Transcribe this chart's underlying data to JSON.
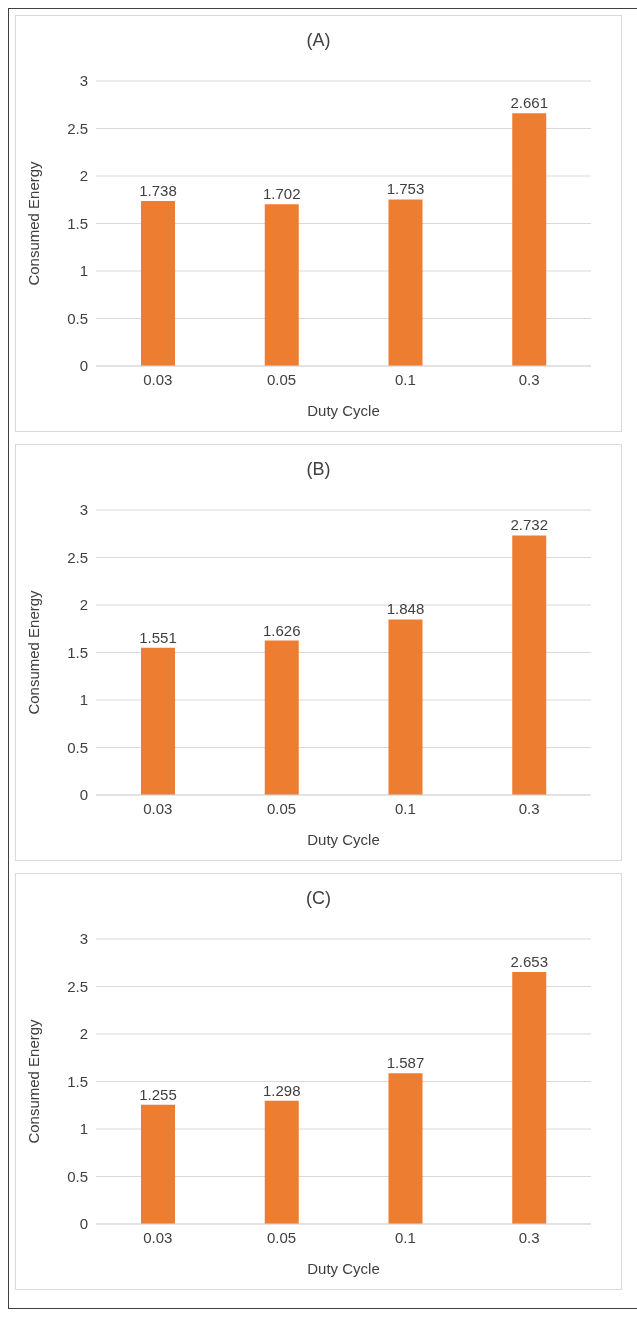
{
  "chart_data": [
    {
      "type": "bar",
      "title": "(A)",
      "xlabel": "Duty Cycle",
      "ylabel": "Consumed Energy",
      "categories": [
        "0.03",
        "0.05",
        "0.1",
        "0.3"
      ],
      "values": [
        1.738,
        1.702,
        1.753,
        2.661
      ],
      "color": "#ed7d31",
      "ylim": [
        0,
        3
      ],
      "yticks": [
        0,
        0.5,
        1,
        1.5,
        2,
        2.5,
        3
      ],
      "grid": "y",
      "data_labels": true
    },
    {
      "type": "bar",
      "title": "(B)",
      "xlabel": "Duty Cycle",
      "ylabel": "Consumed Energy",
      "categories": [
        "0.03",
        "0.05",
        "0.1",
        "0.3"
      ],
      "values": [
        1.551,
        1.626,
        1.848,
        2.732
      ],
      "color": "#ed7d31",
      "ylim": [
        0,
        3
      ],
      "yticks": [
        0,
        0.5,
        1,
        1.5,
        2,
        2.5,
        3
      ],
      "grid": "y",
      "data_labels": true
    },
    {
      "type": "bar",
      "title": "(C)",
      "xlabel": "Duty Cycle",
      "ylabel": "Consumed Energy",
      "categories": [
        "0.03",
        "0.05",
        "0.1",
        "0.3"
      ],
      "values": [
        1.255,
        1.298,
        1.587,
        2.653
      ],
      "color": "#ed7d31",
      "ylim": [
        0,
        3
      ],
      "yticks": [
        0,
        0.5,
        1,
        1.5,
        2,
        2.5,
        3
      ],
      "grid": "y",
      "data_labels": true
    }
  ]
}
